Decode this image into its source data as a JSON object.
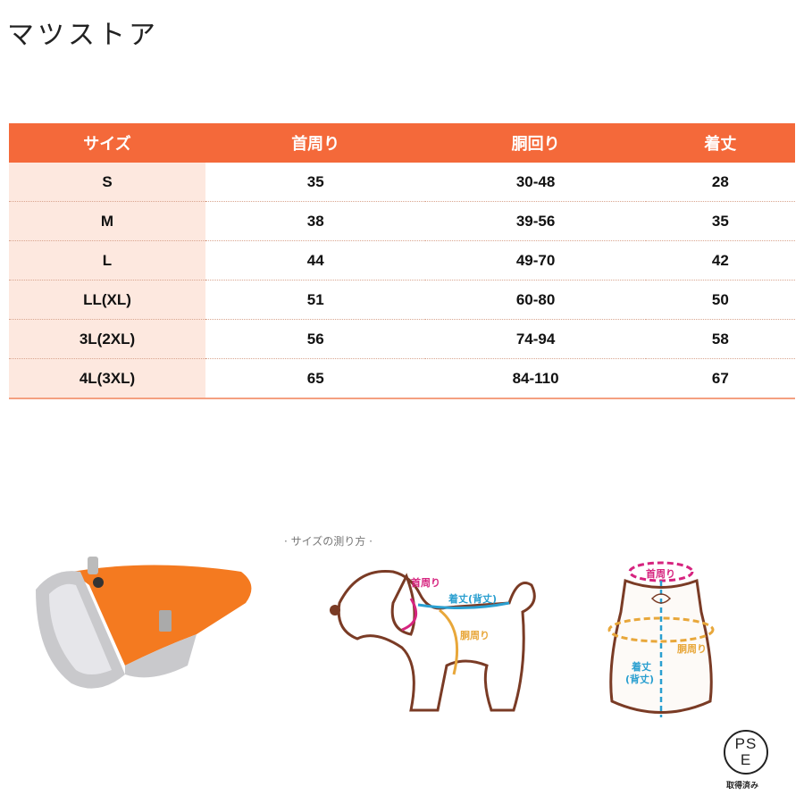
{
  "brand": "マツストア",
  "table": {
    "headers": [
      "サイズ",
      "首周り",
      "胴回り",
      "着丈"
    ],
    "rows": [
      [
        "S",
        "35",
        "30-48",
        "28"
      ],
      [
        "M",
        "38",
        "39-56",
        "35"
      ],
      [
        "L",
        "44",
        "49-70",
        "42"
      ],
      [
        "LL(XL)",
        "51",
        "60-80",
        "50"
      ],
      [
        "3L(2XL)",
        "56",
        "74-94",
        "58"
      ],
      [
        "4L(3XL)",
        "65",
        "84-110",
        "67"
      ]
    ]
  },
  "howto": {
    "title": "· サイズの測り方 ·",
    "neck": "首周り",
    "length": "着丈(背丈)",
    "chest": "胴周り",
    "length2a": "着丈",
    "length2b": "(背丈)"
  },
  "pse": {
    "mark": "PSE",
    "caption": "取得済み"
  },
  "colors": {
    "header": "#f4693a",
    "size_col": "#fde8df",
    "neck": "#d6247f",
    "length": "#2a9fd0",
    "chest": "#e8a73a",
    "outline": "#7a3b25"
  }
}
